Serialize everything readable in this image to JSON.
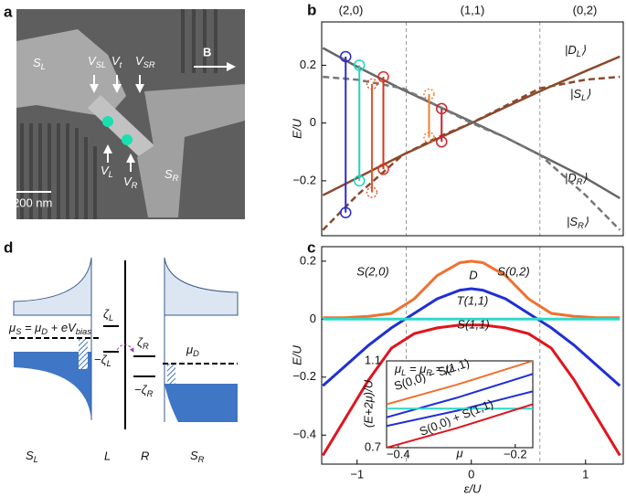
{
  "panel_a": {
    "letter": "a",
    "labels": [
      [
        "S",
        "L"
      ],
      [
        "V",
        "SL"
      ],
      [
        "V",
        "t"
      ],
      [
        "V",
        "SR"
      ],
      "B",
      [
        "V",
        "L"
      ],
      [
        "V",
        "R"
      ],
      [
        "S",
        "R"
      ],
      "200 nm"
    ]
  },
  "panel_d": {
    "letter": "d",
    "labels": [
      [
        "μ",
        "S",
        " = μ",
        "D",
        " + eV",
        "bias"
      ],
      [
        "ζ",
        "L"
      ],
      [
        "−ζ",
        "L"
      ],
      [
        "ζ",
        "R"
      ],
      [
        "−ζ",
        "R"
      ],
      [
        "μ",
        "D"
      ],
      [
        "S",
        "L"
      ],
      "L",
      "R",
      [
        "S",
        "R"
      ]
    ]
  },
  "chart_data": [
    {
      "type": "line",
      "panel_label": "b",
      "ylabel": "E/U",
      "regions": [
        "(2,0)",
        "(1,1)",
        "(0,2)"
      ],
      "xlim": [
        -1.31,
        1.33
      ],
      "ylim": [
        -0.39,
        0.35
      ],
      "yticks": [
        0.2,
        0,
        {
          "value": -0.2,
          "label": "−0.2"
        }
      ],
      "vlines": [
        -0.57,
        0.6
      ],
      "x": [
        -1.3,
        -1,
        -0.6,
        -0.3,
        0,
        0.3,
        0.6,
        1,
        1.3
      ],
      "series": [
        {
          "label": [
            "|D",
            "L",
            "⟩"
          ],
          "color": "#8b4a2b",
          "label_color": "#c9603e",
          "dashed": false,
          "values": [
            -0.25,
            -0.19,
            -0.11,
            -0.055,
            0,
            0.055,
            0.11,
            0.18,
            0.23
          ]
        },
        {
          "label": [
            "|S",
            "L",
            "⟩"
          ],
          "color": "#8b4a2b",
          "label_color": "#d4704a",
          "dashed": true,
          "values": [
            -0.37,
            -0.25,
            -0.11,
            -0.05,
            0,
            0.06,
            0.12,
            0.15,
            0.16
          ]
        },
        {
          "label": [
            "|D",
            "R",
            "⟩"
          ],
          "color": "#666666",
          "label_color": "#555555",
          "dashed": false,
          "values": [
            0.26,
            0.195,
            0.115,
            0.06,
            0.005,
            -0.05,
            -0.11,
            -0.19,
            -0.26
          ]
        },
        {
          "label": [
            "|S",
            "R",
            "⟩"
          ],
          "color": "#777777",
          "label_color": "#777777",
          "dashed": true,
          "values": [
            0.16,
            0.15,
            0.12,
            0.06,
            0,
            -0.05,
            -0.11,
            -0.25,
            -0.37
          ]
        }
      ],
      "transitions": [
        {
          "x": -1.1,
          "top": 0.23,
          "bottom": -0.31,
          "color": "#2a2ad0",
          "dashed": false
        },
        {
          "x": -0.98,
          "top": 0.2,
          "bottom": -0.2,
          "color": "#22d3c0",
          "dashed": false
        },
        {
          "x": -0.87,
          "top": 0.135,
          "bottom": -0.24,
          "color": "#e8552c",
          "dashed": true
        },
        {
          "x": -0.77,
          "top": 0.16,
          "bottom": -0.16,
          "color": "#d9341f",
          "dashed": false
        },
        {
          "x": -0.37,
          "top": 0.1,
          "bottom": -0.05,
          "color": "#f08030",
          "dashed": true
        },
        {
          "x": -0.26,
          "top": 0.05,
          "bottom": -0.065,
          "color": "#d0202a",
          "dashed": false
        }
      ]
    },
    {
      "type": "line",
      "panel_label": "c",
      "ylabel": "E/U",
      "xlabel": "ε/U",
      "xlim": [
        -1.31,
        1.33
      ],
      "ylim": [
        -0.5,
        0.25
      ],
      "xticks": [
        {
          "value": -1,
          "label": "−1"
        },
        0,
        1
      ],
      "yticks": [
        0.2,
        0,
        {
          "value": -0.2,
          "label": "−0.2"
        },
        {
          "value": -0.4,
          "label": "−0.4"
        }
      ],
      "vlines": [
        -0.57,
        0.6
      ],
      "x": [
        -1.3,
        -1.1,
        -0.9,
        -0.7,
        -0.5,
        -0.3,
        -0.1,
        0,
        0.1,
        0.3,
        0.5,
        0.7,
        0.9,
        1.1,
        1.3
      ],
      "series": [
        {
          "labels": [
            "S(2,0)",
            "S(0,2)"
          ],
          "color": "#f07030",
          "values": [
            0.005,
            0.005,
            0.01,
            0.02,
            0.07,
            0.15,
            0.195,
            0.2,
            0.195,
            0.15,
            0.07,
            0.02,
            0.01,
            0.005,
            0.005
          ]
        },
        {
          "labels": [
            "D"
          ],
          "color": "#1f2fd6",
          "values": [
            -0.23,
            -0.16,
            -0.09,
            -0.03,
            0.02,
            0.07,
            0.1,
            0.105,
            0.1,
            0.07,
            0.02,
            -0.03,
            -0.09,
            -0.16,
            -0.23
          ]
        },
        {
          "labels": [
            "T(1,1)"
          ],
          "color": "#2fd8c8",
          "label_color": "#1a9a60",
          "values": [
            0,
            0,
            0,
            0,
            0,
            0,
            0,
            0,
            0,
            0,
            0,
            0,
            0,
            0,
            0
          ]
        },
        {
          "labels": [
            "S(1,1)"
          ],
          "color": "#e0151e",
          "values": [
            -0.47,
            -0.34,
            -0.21,
            -0.1,
            -0.05,
            -0.03,
            -0.02,
            -0.02,
            -0.02,
            -0.03,
            -0.05,
            -0.1,
            -0.21,
            -0.34,
            -0.47
          ]
        }
      ]
    },
    {
      "type": "line",
      "ylabel": "(E+2μ)/U",
      "xlabel": "μ",
      "note": [
        "μ",
        "L",
        " = μ",
        "R",
        " = μ"
      ],
      "xlim": [
        -0.42,
        -0.17
      ],
      "ylim": [
        0.7,
        1.1
      ],
      "xticks": [
        {
          "value": -0.4,
          "label": "−0.4"
        },
        {
          "value": -0.2,
          "label": "−0.2"
        }
      ],
      "yticks": [
        1.1,
        0.7
      ],
      "x": [
        -0.42,
        -0.3,
        -0.17
      ],
      "series": [
        {
          "label": "S(0,0) − S(1,1)",
          "color": "#f07030",
          "values": [
            0.9,
            0.99,
            1.1
          ]
        },
        {
          "color": "#1f2fd6",
          "values": [
            0.84,
            0.93,
            1.04
          ]
        },
        {
          "color": "#1f2fd6",
          "values": [
            0.8,
            0.87,
            0.96
          ]
        },
        {
          "color": "#2fd8c8",
          "values": [
            0.88,
            0.88,
            0.88
          ]
        },
        {
          "label": "S(0,0) + S(1,1)",
          "color": "#e0151e",
          "values": [
            0.7,
            0.79,
            0.9
          ]
        }
      ]
    }
  ]
}
